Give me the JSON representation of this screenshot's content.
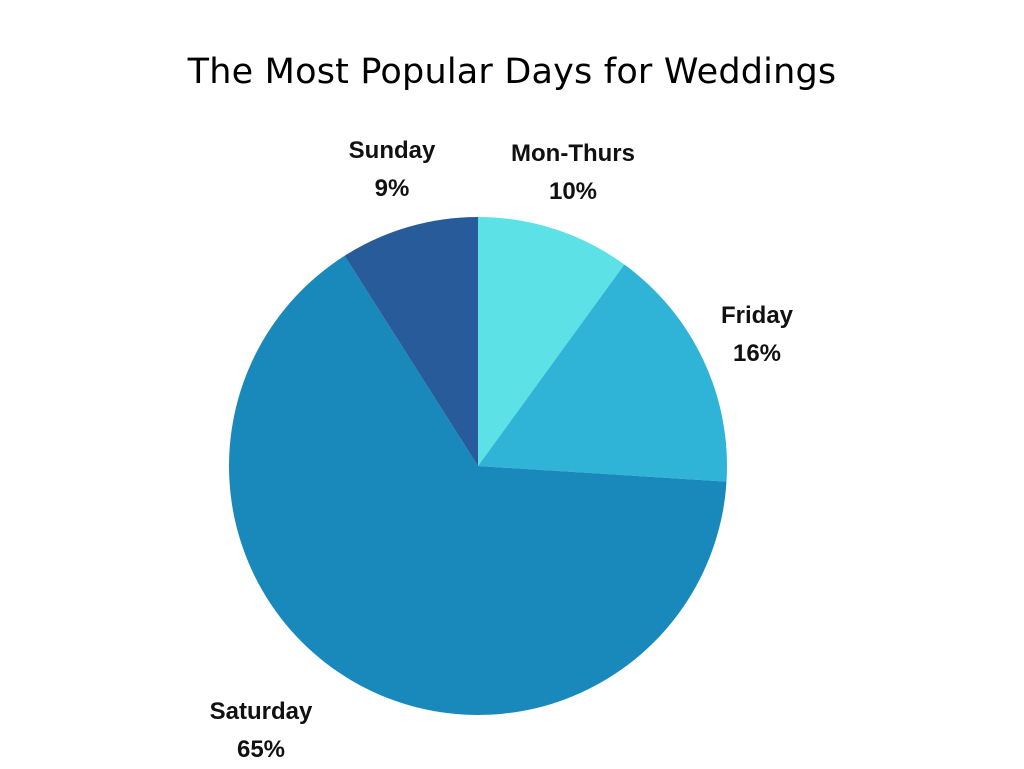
{
  "chart_data": {
    "type": "pie",
    "title": "The Most Popular Days for Weddings",
    "categories": [
      "Mon-Thurs",
      "Friday",
      "Saturday",
      "Sunday"
    ],
    "values": [
      10,
      16,
      65,
      9
    ],
    "value_labels": [
      "10%",
      "16%",
      "65%",
      "9%"
    ],
    "colors": [
      "#5ce1e6",
      "#2fb3d6",
      "#1989bb",
      "#275b99"
    ],
    "start_angle": "12 o'clock",
    "direction": "clockwise",
    "legend": "none"
  }
}
